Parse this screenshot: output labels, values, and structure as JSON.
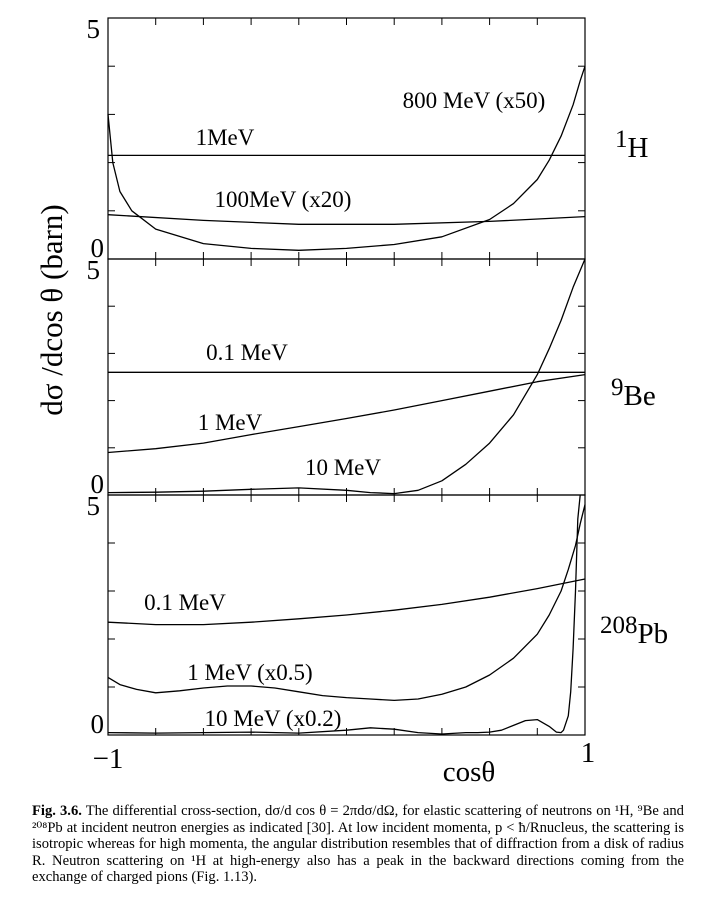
{
  "chart_data": {
    "type": "line",
    "shared": {
      "ylabel": "dσ /dcos θ (barn)",
      "xlabel": "cosθ",
      "x_ticks": [
        "−1",
        "1"
      ],
      "xlim": [
        -1,
        1
      ],
      "ylim": [
        0,
        5
      ]
    },
    "panels": [
      {
        "nucleus_mass": "1",
        "nucleus_symbol": "H",
        "y_tick_top": "5",
        "y_tick_bottom": "0",
        "series": [
          {
            "name": "1MeV",
            "x": [
              -1,
              1
            ],
            "y": [
              2.15,
              2.15
            ]
          },
          {
            "name": "100MeV (x20)",
            "x": [
              -1,
              -0.6,
              -0.2,
              0.2,
              0.6,
              1
            ],
            "y": [
              0.92,
              0.8,
              0.72,
              0.72,
              0.78,
              0.88
            ]
          },
          {
            "name": "800 MeV (x50)",
            "x": [
              -1,
              -0.98,
              -0.95,
              -0.9,
              -0.8,
              -0.6,
              -0.4,
              -0.2,
              0,
              0.2,
              0.4,
              0.6,
              0.7,
              0.8,
              0.85,
              0.9,
              0.95,
              0.98,
              1
            ],
            "y": [
              3.0,
              2.0,
              1.4,
              1.0,
              0.62,
              0.32,
              0.22,
              0.18,
              0.22,
              0.3,
              0.46,
              0.82,
              1.15,
              1.65,
              2.05,
              2.55,
              3.2,
              3.7,
              4.0
            ]
          }
        ]
      },
      {
        "nucleus_mass": "9",
        "nucleus_symbol": "Be",
        "y_tick_top": "5",
        "y_tick_bottom": "0",
        "series": [
          {
            "name": "0.1 MeV",
            "x": [
              -1,
              1
            ],
            "y": [
              2.6,
              2.6
            ]
          },
          {
            "name": "1 MeV",
            "x": [
              -1,
              -0.8,
              -0.6,
              -0.4,
              -0.2,
              0,
              0.2,
              0.4,
              0.6,
              0.8,
              1
            ],
            "y": [
              0.9,
              0.98,
              1.1,
              1.28,
              1.45,
              1.62,
              1.8,
              2.0,
              2.2,
              2.4,
              2.55
            ]
          },
          {
            "name": "10 MeV",
            "x": [
              -1,
              -0.8,
              -0.6,
              -0.4,
              -0.2,
              0,
              0.1,
              0.2,
              0.3,
              0.4,
              0.5,
              0.6,
              0.7,
              0.8,
              0.85,
              0.9,
              0.95,
              1
            ],
            "y": [
              0.05,
              0.06,
              0.08,
              0.12,
              0.15,
              0.1,
              0.05,
              0.03,
              0.1,
              0.3,
              0.65,
              1.1,
              1.7,
              2.55,
              3.1,
              3.7,
              4.4,
              5.0
            ]
          }
        ]
      },
      {
        "nucleus_mass": "208",
        "nucleus_symbol": "Pb",
        "y_tick_top": "5",
        "y_tick_bottom": "0",
        "series": [
          {
            "name": "0.1 MeV",
            "x": [
              -1,
              -0.8,
              -0.6,
              -0.4,
              -0.2,
              0,
              0.2,
              0.4,
              0.6,
              0.8,
              1
            ],
            "y": [
              2.35,
              2.3,
              2.3,
              2.35,
              2.42,
              2.5,
              2.6,
              2.72,
              2.87,
              3.05,
              3.25
            ]
          },
          {
            "name": "1 MeV (x0.5)",
            "x": [
              -1,
              -0.95,
              -0.88,
              -0.8,
              -0.7,
              -0.6,
              -0.5,
              -0.4,
              -0.3,
              -0.2,
              -0.1,
              0,
              0.1,
              0.2,
              0.3,
              0.4,
              0.5,
              0.6,
              0.7,
              0.8,
              0.85,
              0.9,
              0.93,
              0.96,
              0.98,
              1
            ],
            "y": [
              1.2,
              1.05,
              0.95,
              0.88,
              0.92,
              0.98,
              1.02,
              1.02,
              0.98,
              0.9,
              0.82,
              0.78,
              0.75,
              0.72,
              0.75,
              0.85,
              1.0,
              1.25,
              1.6,
              2.1,
              2.5,
              3.0,
              3.45,
              3.95,
              4.4,
              4.8
            ]
          },
          {
            "name": "10 MeV (x0.2)",
            "x": [
              -1,
              -0.8,
              -0.6,
              -0.4,
              -0.2,
              0,
              0.1,
              0.2,
              0.3,
              0.4,
              0.5,
              0.55,
              0.6,
              0.65,
              0.7,
              0.75,
              0.8,
              0.85,
              0.88,
              0.9,
              0.91,
              0.93,
              0.94,
              0.95,
              0.96,
              0.97,
              0.98
            ],
            "y": [
              0.05,
              0.04,
              0.05,
              0.06,
              0.04,
              0.1,
              0.15,
              0.12,
              0.05,
              0.02,
              0.05,
              0.05,
              0.06,
              0.1,
              0.2,
              0.3,
              0.32,
              0.18,
              0.06,
              0.05,
              0.1,
              0.4,
              0.9,
              1.8,
              3.0,
              4.5,
              5.0
            ]
          }
        ]
      }
    ]
  },
  "caption": {
    "fig_label": "Fig. 3.6.",
    "text": "The differential cross-section, dσ/d cos θ = 2πdσ/dΩ, for elastic scattering of neutrons on ¹H, ⁹Be and ²⁰⁸Pb at incident neutron energies as indicated [30]. At low incident momenta, p < ħ/Rnucleus, the scattering is isotropic whereas for high momenta, the angular distribution resembles that of diffraction from a disk of radius R. Neutron scattering on ¹H at high-energy also has a peak in the backward directions coming from the exchange of charged pions (Fig. 1.13)."
  }
}
